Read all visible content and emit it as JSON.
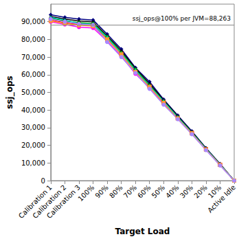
{
  "chart_data": {
    "type": "line",
    "x_label": "Target Load",
    "y_label": "ssj_ops",
    "categories": [
      "Calibration 1",
      "Calibration 2",
      "Calibration 3",
      "100%",
      "90%",
      "80%",
      "70%",
      "60%",
      "50%",
      "40%",
      "30%",
      "20%",
      "10%",
      "Active Idle"
    ],
    "series": [
      {
        "color": "#000080",
        "marker": "diamond",
        "values": [
          94000,
          92500,
          91500,
          91000,
          83000,
          74500,
          64000,
          56000,
          46000,
          37000,
          28000,
          18500,
          9500,
          0
        ]
      },
      {
        "color": "#000000",
        "marker": "triangle",
        "values": [
          93000,
          91500,
          90500,
          90000,
          82000,
          73500,
          63500,
          55000,
          45500,
          36500,
          27500,
          18200,
          9200,
          0
        ]
      },
      {
        "color": "#ff0000",
        "marker": "rect",
        "values": [
          91000,
          89500,
          88500,
          88000,
          80500,
          72000,
          62000,
          53500,
          44500,
          35500,
          27000,
          17800,
          9000,
          0
        ]
      },
      {
        "color": "#ff00ff",
        "marker": "circle",
        "values": [
          90000,
          88500,
          87000,
          86500,
          79000,
          70500,
          60500,
          52500,
          43500,
          35000,
          26500,
          17500,
          8800,
          0
        ]
      },
      {
        "color": "#00aa00",
        "marker": "diamond",
        "values": [
          92000,
          90500,
          89500,
          89000,
          81500,
          72500,
          63000,
          54000,
          45000,
          36000,
          27200,
          18000,
          9100,
          0
        ]
      },
      {
        "color": "#00cccc",
        "marker": "triangle",
        "values": [
          92500,
          91000,
          89000,
          88500,
          81000,
          72000,
          62500,
          53500,
          44800,
          35800,
          27000,
          17900,
          9000,
          0
        ]
      },
      {
        "color": "#ff9933",
        "marker": "rect",
        "values": [
          90500,
          89000,
          88000,
          87500,
          80000,
          71500,
          61500,
          53000,
          44000,
          35200,
          26800,
          17600,
          8900,
          0
        ]
      },
      {
        "color": "#aa88ff",
        "marker": "circle",
        "values": [
          91500,
          90000,
          88800,
          88200,
          78500,
          70000,
          61000,
          52000,
          43000,
          34800,
          26300,
          17300,
          8600,
          0
        ]
      }
    ],
    "ylim": [
      0,
      100000
    ],
    "yticks": [
      0,
      {
        "value": 10000,
        "label": "10,000"
      },
      {
        "value": 20000,
        "label": "20,000"
      },
      {
        "value": 30000,
        "label": "30,000"
      },
      {
        "value": 40000,
        "label": "40,000"
      },
      {
        "value": 50000,
        "label": "50,000"
      },
      {
        "value": 60000,
        "label": "60,000"
      },
      {
        "value": 70000,
        "label": "70,000"
      },
      {
        "value": 80000,
        "label": "80,000"
      },
      {
        "value": 90000,
        "label": "90,000"
      }
    ],
    "annotations": [
      {
        "y": 88263,
        "text": "ssj_ops@100% per JVM=88,263"
      }
    ],
    "grid": false
  }
}
